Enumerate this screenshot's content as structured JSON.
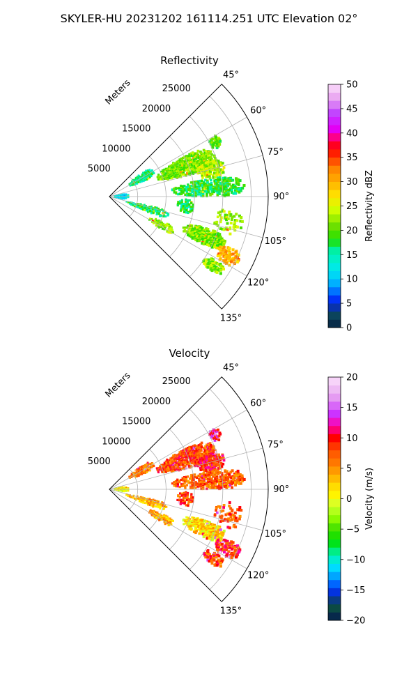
{
  "figure": {
    "suptitle": "SKYLER-HU  20231202  161114.251 UTC Elevation 02°"
  },
  "chart_data": [
    {
      "type": "heatmap",
      "subtype": "polar-sector (PPI radar sweep)",
      "title": "Reflectivity",
      "radial_label": "Meters",
      "theta_range_deg": [
        45,
        135
      ],
      "theta_ticks": [
        "45°",
        "60°",
        "75°",
        "90°",
        "105°",
        "120°",
        "135°"
      ],
      "r_max": 28000,
      "r_ticks": [
        "5000",
        "10000",
        "15000",
        "20000",
        "25000"
      ],
      "r_tick_values": [
        5000,
        10000,
        15000,
        20000,
        25000
      ],
      "grid": true,
      "colorbar": {
        "label": "Reflectivity dBZ",
        "min": 0,
        "max": 50,
        "ticks": [
          "0",
          "5",
          "10",
          "15",
          "20",
          "25",
          "30",
          "35",
          "40",
          "45",
          "50"
        ],
        "stops": [
          {
            "v": 0,
            "c": "#05184f"
          },
          {
            "v": 2,
            "c": "#0b4a44"
          },
          {
            "v": 4,
            "c": "#0a33a3"
          },
          {
            "v": 6,
            "c": "#0033ff"
          },
          {
            "v": 8,
            "c": "#0088ff"
          },
          {
            "v": 10,
            "c": "#00ccff"
          },
          {
            "v": 13,
            "c": "#00f0e0"
          },
          {
            "v": 16,
            "c": "#00f0a0"
          },
          {
            "v": 18,
            "c": "#20e000"
          },
          {
            "v": 21,
            "c": "#70e000"
          },
          {
            "v": 24,
            "c": "#ccff00"
          },
          {
            "v": 27,
            "c": "#ffe600"
          },
          {
            "v": 30,
            "c": "#ffb000"
          },
          {
            "v": 33,
            "c": "#ff7f00"
          },
          {
            "v": 35,
            "c": "#ff3300"
          },
          {
            "v": 37,
            "c": "#ff0000"
          },
          {
            "v": 39,
            "c": "#ff0080"
          },
          {
            "v": 41,
            "c": "#e000ff"
          },
          {
            "v": 44,
            "c": "#c040ff"
          },
          {
            "v": 47,
            "c": "#e8a0f0"
          },
          {
            "v": 50,
            "c": "#fbe0fb"
          }
        ]
      },
      "echo_regions": [
        {
          "theta": [
            54,
            66
          ],
          "r": [
            4000,
            9000
          ],
          "value": 16,
          "density": 0.7
        },
        {
          "theta": [
            62,
            75
          ],
          "r": [
            9000,
            20000
          ],
          "value": 21,
          "density": 0.75
        },
        {
          "theta": [
            60,
            66
          ],
          "r": [
            20000,
            22000
          ],
          "value": 20,
          "density": 0.6
        },
        {
          "theta": [
            70,
            80
          ],
          "r": [
            16000,
            21000
          ],
          "value": 23,
          "density": 0.6
        },
        {
          "theta": [
            80,
            90
          ],
          "r": [
            11000,
            24000
          ],
          "value": 18,
          "density": 0.6
        },
        {
          "theta": [
            92,
            102
          ],
          "r": [
            12000,
            15000
          ],
          "value": 17,
          "density": 0.5
        },
        {
          "theta": [
            103,
            112
          ],
          "r": [
            3000,
            11000
          ],
          "value": 17,
          "density": 0.45
        },
        {
          "theta": [
            108,
            117
          ],
          "r": [
            14000,
            22000
          ],
          "value": 21,
          "density": 0.8
        },
        {
          "theta": [
            113,
            120
          ],
          "r": [
            21000,
            25500
          ],
          "value": 30,
          "density": 0.6
        },
        {
          "theta": [
            121,
            126
          ],
          "r": [
            20000,
            24000
          ],
          "value": 22,
          "density": 0.6
        },
        {
          "theta": [
            115,
            122
          ],
          "r": [
            8000,
            13000
          ],
          "value": 22,
          "density": 0.5
        },
        {
          "theta": [
            80,
            100
          ],
          "r": [
            800,
            3500
          ],
          "value": 12,
          "density": 0.6
        },
        {
          "theta": [
            96,
            108
          ],
          "r": [
            19000,
            24000
          ],
          "value": 22,
          "density": 0.25
        }
      ]
    },
    {
      "type": "heatmap",
      "subtype": "polar-sector (PPI radar sweep)",
      "title": "Velocity",
      "radial_label": "Meters",
      "theta_range_deg": [
        45,
        135
      ],
      "theta_ticks": [
        "45°",
        "60°",
        "75°",
        "90°",
        "105°",
        "120°",
        "135°"
      ],
      "r_max": 28000,
      "r_ticks": [
        "5000",
        "10000",
        "15000",
        "20000",
        "25000"
      ],
      "r_tick_values": [
        5000,
        10000,
        15000,
        20000,
        25000
      ],
      "grid": true,
      "colorbar": {
        "label": "Velocity (m/s)",
        "min": -20,
        "max": 20,
        "ticks": [
          "−20",
          "−15",
          "−10",
          "−5",
          "0",
          "5",
          "10",
          "15",
          "20"
        ],
        "stops": [
          {
            "v": -20,
            "c": "#05184f"
          },
          {
            "v": -18,
            "c": "#0b4a44"
          },
          {
            "v": -16,
            "c": "#0a33a3"
          },
          {
            "v": -15,
            "c": "#0033ff"
          },
          {
            "v": -13,
            "c": "#0099ff"
          },
          {
            "v": -11,
            "c": "#00e8ff"
          },
          {
            "v": -9,
            "c": "#00f0a0"
          },
          {
            "v": -7,
            "c": "#00e000"
          },
          {
            "v": -5,
            "c": "#40e000"
          },
          {
            "v": -3,
            "c": "#99ff00"
          },
          {
            "v": -1,
            "c": "#ccff33"
          },
          {
            "v": 0,
            "c": "#ffff00"
          },
          {
            "v": 2,
            "c": "#ffdd00"
          },
          {
            "v": 4,
            "c": "#ffaa00"
          },
          {
            "v": 6,
            "c": "#ff7700"
          },
          {
            "v": 8,
            "c": "#ff5000"
          },
          {
            "v": 10,
            "c": "#ff0000"
          },
          {
            "v": 12,
            "c": "#ff00aa"
          },
          {
            "v": 14,
            "c": "#cc33ff"
          },
          {
            "v": 17,
            "c": "#e8a8f0"
          },
          {
            "v": 20,
            "c": "#fbe0fb"
          }
        ]
      },
      "echo_regions": [
        {
          "theta": [
            54,
            66
          ],
          "r": [
            4000,
            9000
          ],
          "value": 6,
          "density": 0.7
        },
        {
          "theta": [
            62,
            75
          ],
          "r": [
            9000,
            20000
          ],
          "value": 8,
          "density": 0.75
        },
        {
          "theta": [
            60,
            66
          ],
          "r": [
            20000,
            22000
          ],
          "value": 12,
          "density": 0.6
        },
        {
          "theta": [
            70,
            80
          ],
          "r": [
            16000,
            21000
          ],
          "value": 9,
          "density": 0.6
        },
        {
          "theta": [
            80,
            90
          ],
          "r": [
            11000,
            24000
          ],
          "value": 7,
          "density": 0.6
        },
        {
          "theta": [
            92,
            102
          ],
          "r": [
            12000,
            15000
          ],
          "value": 8,
          "density": 0.5
        },
        {
          "theta": [
            103,
            112
          ],
          "r": [
            3000,
            11000
          ],
          "value": 4,
          "density": 0.45
        },
        {
          "theta": [
            108,
            117
          ],
          "r": [
            14000,
            22000
          ],
          "value": 2,
          "density": 0.8
        },
        {
          "theta": [
            113,
            120
          ],
          "r": [
            21000,
            25500
          ],
          "value": 9,
          "density": 0.6
        },
        {
          "theta": [
            121,
            126
          ],
          "r": [
            20000,
            24000
          ],
          "value": 8,
          "density": 0.6
        },
        {
          "theta": [
            115,
            122
          ],
          "r": [
            8000,
            13000
          ],
          "value": 4,
          "density": 0.5
        },
        {
          "theta": [
            80,
            100
          ],
          "r": [
            800,
            3500
          ],
          "value": 1,
          "density": 0.6
        },
        {
          "theta": [
            96,
            108
          ],
          "r": [
            19000,
            24000
          ],
          "value": 8,
          "density": 0.25
        }
      ]
    }
  ]
}
